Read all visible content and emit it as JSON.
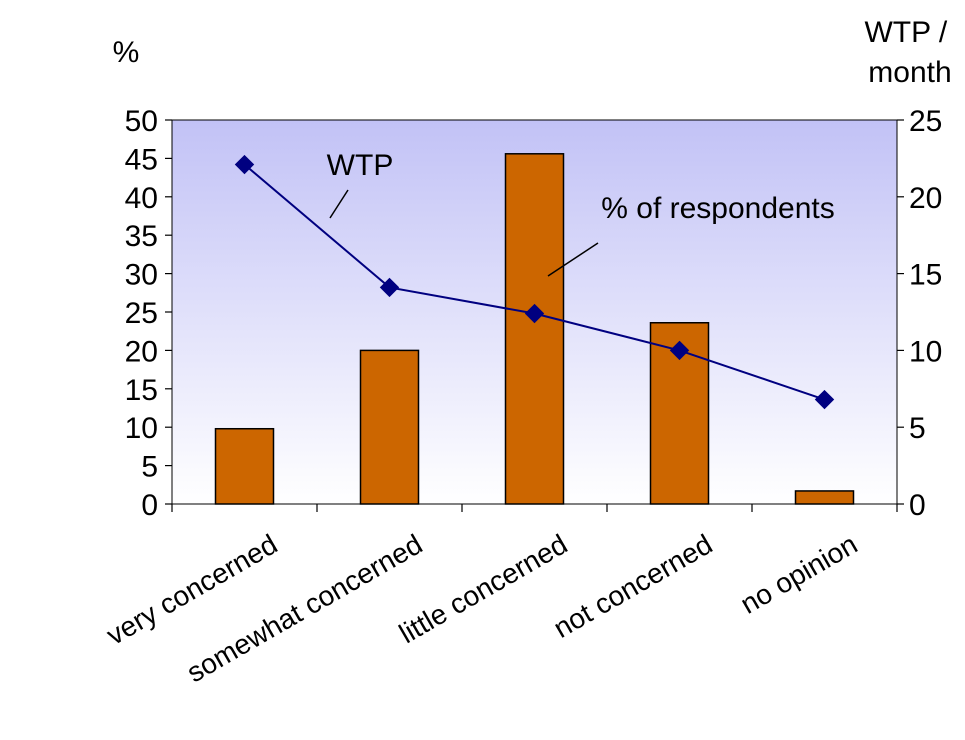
{
  "chart_data": {
    "type": "bar",
    "categories": [
      "very concerned",
      "somewhat concerned",
      "little concerned",
      "not concerned",
      "no opinion"
    ],
    "series": [
      {
        "name": "% of respondents",
        "type": "bar",
        "axis": "left",
        "values": [
          9.8,
          20.0,
          45.6,
          23.6,
          1.7
        ]
      },
      {
        "name": "WTP",
        "type": "line",
        "axis": "right",
        "values": [
          22.1,
          14.1,
          12.4,
          10.0,
          6.8
        ]
      }
    ],
    "ylabel_left": "%",
    "ylabel_right": "WTP / month",
    "ylim_left": [
      0,
      50
    ],
    "ylim_right": [
      0,
      25
    ],
    "yticks_left": [
      "0",
      "5",
      "10",
      "15",
      "20",
      "25",
      "30",
      "35",
      "40",
      "45",
      "50"
    ],
    "yticks_right": [
      "0",
      "5",
      "10",
      "15",
      "20",
      "25"
    ],
    "annotations": [
      "WTP",
      "% of respondents"
    ],
    "colors": {
      "bar": "#CC6600",
      "line": "#000080",
      "bg_top": "#C2C2F6",
      "bg_bottom": "#FFFFFF"
    }
  }
}
